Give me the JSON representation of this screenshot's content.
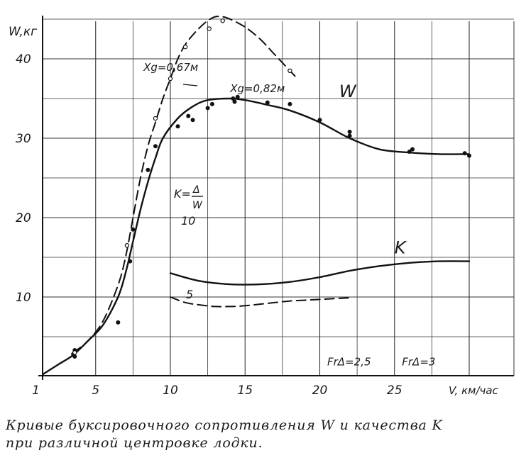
{
  "chart_data": {
    "type": "line",
    "title": "",
    "xlabel": "V, км/час",
    "ylabel": "W,кг",
    "xlim": [
      1,
      30
    ],
    "ylim": [
      0,
      46
    ],
    "x_ticks": [
      "1",
      "5",
      "10",
      "15",
      "20",
      "25"
    ],
    "y_ticks": [
      "10",
      "20",
      "30",
      "40"
    ],
    "grid": true,
    "secondary_axis": {
      "label": "K = Δ/W",
      "ticks": [
        "5",
        "10"
      ]
    },
    "series": [
      {
        "name": "W",
        "style": "solid",
        "x": [
          1.5,
          2.5,
          3.5,
          4.5,
          5.5,
          6.5,
          7.0,
          7.5,
          8.0,
          8.5,
          9.0,
          9.5,
          10.5,
          11.5,
          12.5,
          14.0,
          15.0,
          16.5,
          18.0,
          20.0,
          22.0,
          24.0,
          26.0,
          28.0,
          30.0
        ],
        "y": [
          0.3,
          1.5,
          2.7,
          4.5,
          6.5,
          10.0,
          13.0,
          17.0,
          21.0,
          24.5,
          27.5,
          30.0,
          32.5,
          34.0,
          34.8,
          35.0,
          34.8,
          34.2,
          33.5,
          32.0,
          30.0,
          28.6,
          28.2,
          28.0,
          28.0
        ]
      },
      {
        "name": "K",
        "style": "solid",
        "x": [
          10.0,
          12.0,
          14.0,
          16.0,
          18.0,
          20.0,
          22.0,
          24.0,
          26.0,
          28.0,
          30.0
        ],
        "y": [
          13.0,
          12.0,
          11.6,
          11.6,
          11.9,
          12.5,
          13.3,
          13.9,
          14.3,
          14.5,
          14.5
        ]
      },
      {
        "name": "",
        "style": "dashed",
        "x": [
          10.0,
          11.0,
          12.0,
          13.0,
          14.0,
          15.0,
          16.0,
          17.0,
          18.0,
          19.0,
          20.0,
          21.0,
          22.0
        ],
        "y": [
          10.0,
          9.3,
          9.0,
          8.8,
          8.8,
          8.9,
          9.1,
          9.3,
          9.5,
          9.6,
          9.7,
          9.8,
          9.9
        ]
      },
      {
        "name": "",
        "style": "dashed",
        "x": [
          3.5,
          4.5,
          5.5,
          6.5,
          7.0,
          7.5,
          8.0,
          8.5,
          9.0,
          9.5,
          10.0,
          10.5,
          11.0,
          11.5,
          12.0,
          12.5,
          13.0,
          13.5,
          14.0,
          15.0,
          16.0,
          17.0,
          18.0,
          18.5
        ],
        "y": [
          3.0,
          4.5,
          7.0,
          11.5,
          15.0,
          20.0,
          25.0,
          29.0,
          32.0,
          35.0,
          37.5,
          40.0,
          41.8,
          43.0,
          44.0,
          44.8,
          45.3,
          45.3,
          45.0,
          44.0,
          42.5,
          40.5,
          38.5,
          37.5
        ]
      }
    ],
    "points": [
      {
        "x": 3.5,
        "y": 2.8,
        "fill": "solid"
      },
      {
        "x": 3.6,
        "y": 3.3,
        "fill": "solid"
      },
      {
        "x": 3.6,
        "y": 2.5,
        "fill": "solid"
      },
      {
        "x": 6.5,
        "y": 6.8,
        "fill": "solid"
      },
      {
        "x": 7.3,
        "y": 14.5,
        "fill": "solid"
      },
      {
        "x": 7.5,
        "y": 18.5,
        "fill": "solid"
      },
      {
        "x": 8.5,
        "y": 26.0,
        "fill": "solid"
      },
      {
        "x": 9.0,
        "y": 29.0,
        "fill": "solid"
      },
      {
        "x": 10.5,
        "y": 31.5,
        "fill": "solid"
      },
      {
        "x": 11.2,
        "y": 32.8,
        "fill": "solid"
      },
      {
        "x": 11.5,
        "y": 32.3,
        "fill": "solid"
      },
      {
        "x": 12.5,
        "y": 33.8,
        "fill": "solid"
      },
      {
        "x": 12.8,
        "y": 34.3,
        "fill": "solid"
      },
      {
        "x": 14.2,
        "y": 35.0,
        "fill": "solid"
      },
      {
        "x": 14.3,
        "y": 34.6,
        "fill": "solid"
      },
      {
        "x": 14.5,
        "y": 35.2,
        "fill": "solid"
      },
      {
        "x": 16.5,
        "y": 34.5,
        "fill": "solid"
      },
      {
        "x": 18.0,
        "y": 34.3,
        "fill": "solid"
      },
      {
        "x": 20.0,
        "y": 32.3,
        "fill": "solid"
      },
      {
        "x": 22.0,
        "y": 30.8,
        "fill": "solid"
      },
      {
        "x": 22.0,
        "y": 30.3,
        "fill": "solid"
      },
      {
        "x": 26.0,
        "y": 28.3,
        "fill": "solid"
      },
      {
        "x": 26.2,
        "y": 28.6,
        "fill": "solid"
      },
      {
        "x": 29.7,
        "y": 28.1,
        "fill": "solid"
      },
      {
        "x": 30.0,
        "y": 27.8,
        "fill": "solid"
      },
      {
        "x": 3.6,
        "y": 3.0,
        "fill": "open"
      },
      {
        "x": 7.1,
        "y": 16.5,
        "fill": "open"
      },
      {
        "x": 9.0,
        "y": 32.5,
        "fill": "open"
      },
      {
        "x": 10.0,
        "y": 37.5,
        "fill": "open"
      },
      {
        "x": 11.0,
        "y": 41.5,
        "fill": "open"
      },
      {
        "x": 12.6,
        "y": 43.8,
        "fill": "open"
      },
      {
        "x": 13.5,
        "y": 44.8,
        "fill": "open"
      },
      {
        "x": 18.0,
        "y": 38.5,
        "fill": "open"
      }
    ],
    "annotations": [
      {
        "text": "W",
        "x": 21.3,
        "y": 35.2
      },
      {
        "text": "K",
        "x": 25.0,
        "y": 15.5
      },
      {
        "text": "Xg=0,67м",
        "x": 8.2,
        "y": 38.5
      },
      {
        "text": "Xg=0,82м",
        "x": 14.0,
        "y": 35.8
      },
      {
        "text": "FrΔ=2,5",
        "x": 20.5,
        "y": 1.4
      },
      {
        "text": "FrΔ=3",
        "x": 25.5,
        "y": 1.4
      }
    ]
  },
  "caption": {
    "line1": "Кривые буксировочного сопротивления W и качества K",
    "line2": "при различной центровке лодки."
  }
}
